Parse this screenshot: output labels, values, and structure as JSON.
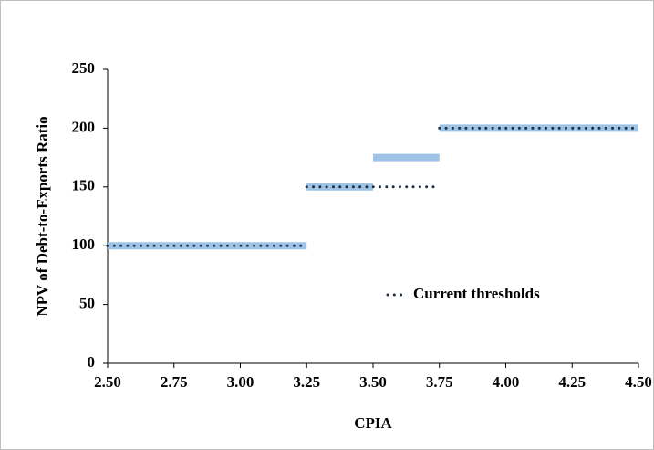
{
  "chart_data": {
    "type": "line",
    "x_label": "CPIA",
    "y_label": "NPV of Debt-to-Exports Ratio",
    "xlim": [
      2.5,
      4.5
    ],
    "xticks": [
      {
        "value": 2.5,
        "label": "2.50"
      },
      {
        "value": 2.75,
        "label": "2.75"
      },
      {
        "value": 3,
        "label": "3.00"
      },
      {
        "value": 3.25,
        "label": "3.25"
      },
      {
        "value": 3.5,
        "label": "3.50"
      },
      {
        "value": 3.75,
        "label": "3.75"
      },
      {
        "value": 4,
        "label": "4.00"
      },
      {
        "value": 4.25,
        "label": "4.25"
      },
      {
        "value": 4.5,
        "label": "4.50"
      }
    ],
    "ylim": [
      0,
      250
    ],
    "yticks": [
      0,
      50,
      100,
      150,
      200,
      250
    ],
    "grid": false,
    "legend": "right",
    "series": [
      {
        "color": "#9dc3e6",
        "style": "solid",
        "x": [
          2.5,
          3.25,
          null,
          3.25,
          3.5,
          null,
          3.5,
          3.75,
          null,
          3.75,
          4.5
        ],
        "values": [
          100,
          100,
          null,
          150,
          150,
          null,
          175,
          175,
          null,
          200,
          200
        ]
      },
      {
        "name": "Current thresholds",
        "color": "#1f2f3f",
        "style": "dotted",
        "x": [
          2.5,
          3.25,
          null,
          3.25,
          3.75,
          null,
          3.75,
          4.5
        ],
        "values": [
          100,
          100,
          null,
          150,
          150,
          null,
          200,
          200
        ]
      }
    ]
  }
}
